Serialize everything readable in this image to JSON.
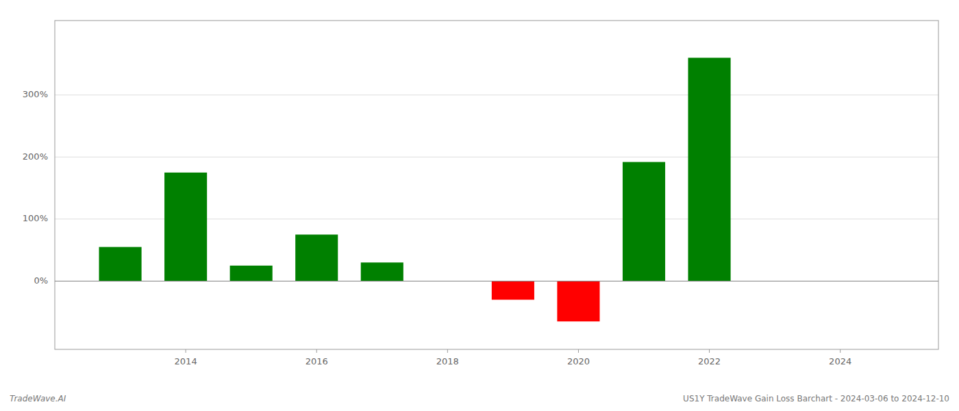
{
  "chart_data": {
    "type": "bar",
    "x": [
      2013,
      2014,
      2015,
      2016,
      2017,
      2019,
      2020,
      2021,
      2022
    ],
    "values": [
      55,
      175,
      25,
      75,
      30,
      -30,
      -65,
      192,
      360
    ],
    "colors": [
      "#008000",
      "#008000",
      "#008000",
      "#008000",
      "#008000",
      "#ff0000",
      "#ff0000",
      "#008000",
      "#008000"
    ],
    "xlim": [
      2012.0,
      2025.5
    ],
    "xticks": [
      2014,
      2016,
      2018,
      2020,
      2022,
      2024
    ],
    "ylim": [
      -110,
      420
    ],
    "yticks": [
      {
        "value": 0,
        "label": "0%"
      },
      {
        "value": 100,
        "label": "100%"
      },
      {
        "value": 200,
        "label": "200%"
      },
      {
        "value": 300,
        "label": "300%"
      }
    ],
    "grid": true,
    "annotations": [
      "TradeWave.AI",
      "US1Y TradeWave Gain Loss Barchart - 2024-03-06 to 2024-12-10"
    ]
  }
}
